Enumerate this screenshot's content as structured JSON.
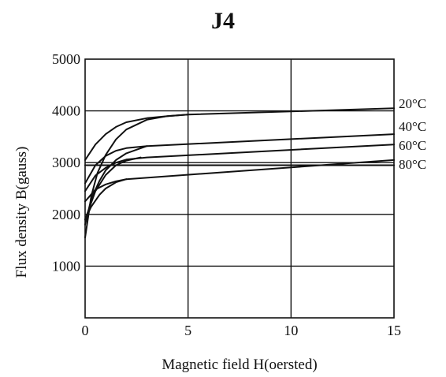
{
  "chart_data": {
    "type": "line",
    "title": "J4",
    "xlabel": "Magnetic field H(oersted)",
    "ylabel": "Flux density B(gauss)",
    "xlim": [
      0,
      15
    ],
    "ylim": [
      0,
      5000
    ],
    "xticks": [
      0,
      5,
      10,
      15
    ],
    "yticks": [
      1000,
      2000,
      3000,
      4000,
      5000
    ],
    "grid": true,
    "series": [
      {
        "name": "20°C",
        "upper": [
          [
            0,
            3050
          ],
          [
            0.5,
            3350
          ],
          [
            1,
            3550
          ],
          [
            1.5,
            3690
          ],
          [
            2,
            3780
          ],
          [
            3,
            3860
          ],
          [
            4,
            3900
          ],
          [
            5,
            3930
          ],
          [
            10,
            3990
          ],
          [
            15,
            4050
          ]
        ],
        "lower": [
          [
            0,
            1550
          ],
          [
            0.3,
            2350
          ],
          [
            0.6,
            2800
          ],
          [
            1,
            3150
          ],
          [
            1.5,
            3450
          ],
          [
            2,
            3640
          ],
          [
            3,
            3830
          ],
          [
            4,
            3900
          ],
          [
            5,
            3930
          ]
        ]
      },
      {
        "name": "40°C",
        "upper": [
          [
            0,
            2600
          ],
          [
            0.5,
            2950
          ],
          [
            1,
            3130
          ],
          [
            1.5,
            3230
          ],
          [
            2,
            3280
          ],
          [
            3,
            3320
          ],
          [
            15,
            3550
          ]
        ],
        "lower": [
          [
            0,
            1800
          ],
          [
            0.3,
            2300
          ],
          [
            0.7,
            2650
          ],
          [
            1,
            2850
          ],
          [
            1.5,
            3050
          ],
          [
            2,
            3180
          ],
          [
            2.5,
            3250
          ],
          [
            3,
            3320
          ]
        ]
      },
      {
        "name": "60°C",
        "upper": [
          [
            0,
            2450
          ],
          [
            0.5,
            2750
          ],
          [
            1,
            2900
          ],
          [
            1.5,
            3000
          ],
          [
            2,
            3060
          ],
          [
            3,
            3100
          ],
          [
            15,
            3350
          ]
        ],
        "lower": [
          [
            0,
            1900
          ],
          [
            0.5,
            2450
          ],
          [
            1,
            2760
          ],
          [
            1.5,
            2950
          ],
          [
            2,
            3040
          ],
          [
            2.7,
            3100
          ]
        ]
      },
      {
        "name": "80°C",
        "upper": [
          [
            0,
            2250
          ],
          [
            0.5,
            2480
          ],
          [
            1,
            2580
          ],
          [
            1.5,
            2640
          ],
          [
            2,
            2680
          ],
          [
            15,
            3050
          ]
        ],
        "lower": [
          [
            0,
            1900
          ],
          [
            0.3,
            2150
          ],
          [
            0.7,
            2380
          ],
          [
            1,
            2500
          ],
          [
            1.5,
            2620
          ],
          [
            2,
            2680
          ]
        ]
      },
      {
        "name": "",
        "upper": [
          [
            0,
            2950
          ],
          [
            15,
            2950
          ]
        ],
        "lower": []
      }
    ]
  }
}
